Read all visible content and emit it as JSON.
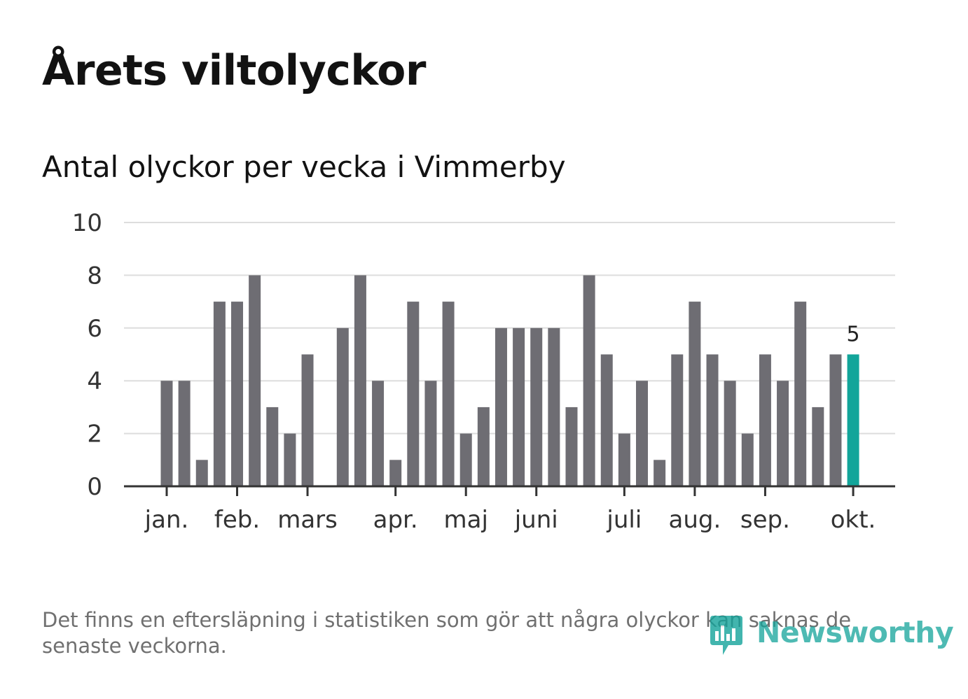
{
  "header": {
    "title": "Årets viltolyckor",
    "subtitle": "Antal olyckor per vecka i Vimmerby"
  },
  "chart_data": {
    "type": "bar",
    "title": "Årets viltolyckor",
    "subtitle": "Antal olyckor per vecka i Vimmerby",
    "xlabel": "",
    "ylabel": "",
    "ylim": [
      0,
      10
    ],
    "yticks": [
      0,
      2,
      4,
      6,
      8,
      10
    ],
    "grid": true,
    "values": [
      4,
      4,
      1,
      7,
      7,
      8,
      3,
      2,
      5,
      0,
      6,
      8,
      4,
      1,
      7,
      4,
      7,
      2,
      3,
      6,
      6,
      6,
      6,
      3,
      8,
      5,
      2,
      4,
      1,
      5,
      7,
      5,
      4,
      2,
      5,
      4,
      7,
      3,
      5,
      5
    ],
    "x_ticks": [
      {
        "label": "jan.",
        "week_index": 0
      },
      {
        "label": "feb.",
        "week_index": 4
      },
      {
        "label": "mars",
        "week_index": 8
      },
      {
        "label": "apr.",
        "week_index": 13
      },
      {
        "label": "maj",
        "week_index": 17
      },
      {
        "label": "juni",
        "week_index": 21
      },
      {
        "label": "juli",
        "week_index": 26
      },
      {
        "label": "aug.",
        "week_index": 30
      },
      {
        "label": "sep.",
        "week_index": 34
      },
      {
        "label": "okt.",
        "week_index": 39
      }
    ],
    "highlight_index": 39,
    "highlight_label": "5",
    "colors": {
      "bar": "#6e6d73",
      "highlight": "#12a59a",
      "grid": "#dddddd",
      "axis": "#333333"
    }
  },
  "footer": {
    "note": "Det finns en eftersläpning i statistiken som gör att några olyckor kan saknas de senaste veckorna.",
    "logo_text": "Newsworthy"
  }
}
